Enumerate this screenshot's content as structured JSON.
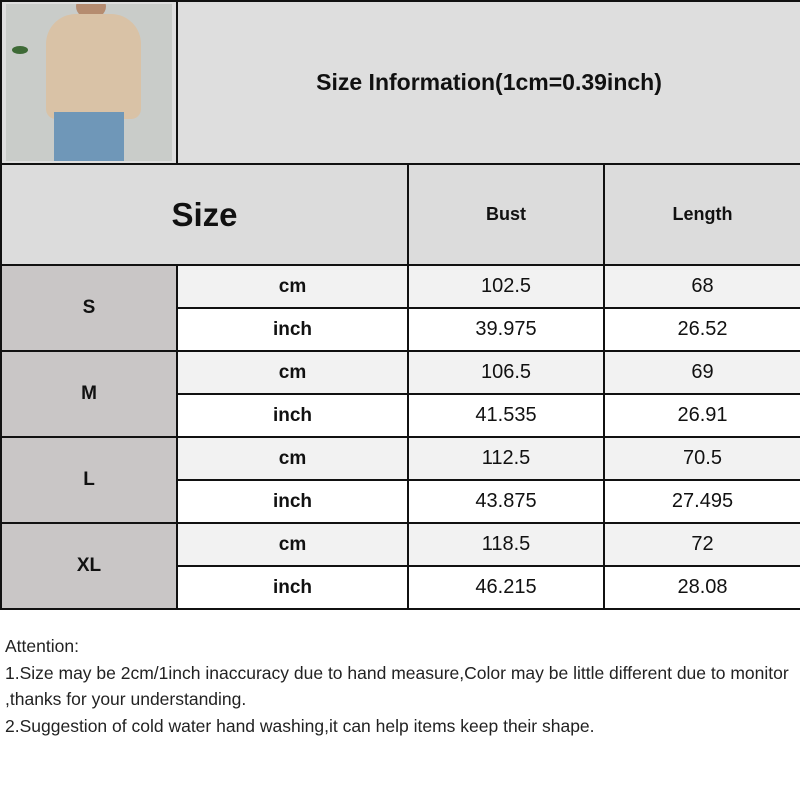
{
  "title": "Size Information(1cm=0.39inch)",
  "header": {
    "size": "Size",
    "bust": "Bust",
    "length": "Length"
  },
  "rows": [
    {
      "size": "S",
      "cm": {
        "unit": "cm",
        "bust": "102.5",
        "length": "68"
      },
      "inch": {
        "unit": "inch",
        "bust": "39.975",
        "length": "26.52"
      }
    },
    {
      "size": "M",
      "cm": {
        "unit": "cm",
        "bust": "106.5",
        "length": "69"
      },
      "inch": {
        "unit": "inch",
        "bust": "41.535",
        "length": "26.91"
      }
    },
    {
      "size": "L",
      "cm": {
        "unit": "cm",
        "bust": "112.5",
        "length": "70.5"
      },
      "inch": {
        "unit": "inch",
        "bust": "43.875",
        "length": "27.495"
      }
    },
    {
      "size": "XL",
      "cm": {
        "unit": "cm",
        "bust": "118.5",
        "length": "72"
      },
      "inch": {
        "unit": "inch",
        "bust": "46.215",
        "length": "28.08"
      }
    }
  ],
  "attention": {
    "heading": "Attention:",
    "line1": "1.Size may be 2cm/1inch inaccuracy due to hand measure,Color may be little different due to monitor ,thanks for your understanding.",
    "line2": "2.Suggestion of cold water hand washing,it can help items keep their shape."
  }
}
